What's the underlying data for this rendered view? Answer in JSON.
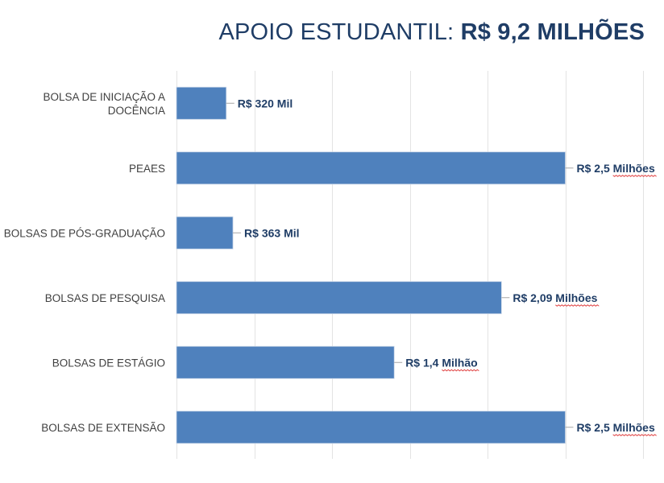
{
  "header": {
    "title_prefix": "APOIO ESTUDANTIL: ",
    "title_value": "R$ 9,2 MILHÕES"
  },
  "chart_data": {
    "type": "bar",
    "orientation": "horizontal",
    "title": "APOIO ESTUDANTIL: R$ 9,2 MILHÕES",
    "xlabel": "",
    "ylabel": "",
    "grid": true,
    "legend": "none",
    "bar_color": "#4f81bd",
    "xlim": [
      0,
      3
    ],
    "categories": [
      [
        "BOLSA DE INICIAÇÃO A",
        "DOCÊNCIA"
      ],
      [
        "PEAES"
      ],
      [
        "BOLSAS DE PÓS-GRADUAÇÃO"
      ],
      [
        "BOLSAS DE PESQUISA"
      ],
      [
        "BOLSAS DE ESTÁGIO"
      ],
      [
        "BOLSAS DE EXTENSÃO"
      ]
    ],
    "values": [
      0.32,
      2.5,
      0.363,
      2.09,
      1.4,
      2.5
    ],
    "data_labels": [
      "R$ 320 Mil",
      "R$ 2,5 Milhões",
      "R$ 363 Mil",
      "R$ 2,09 Milhões",
      "R$ 1,4 Milhão",
      "R$ 2,5 Milhões"
    ]
  }
}
